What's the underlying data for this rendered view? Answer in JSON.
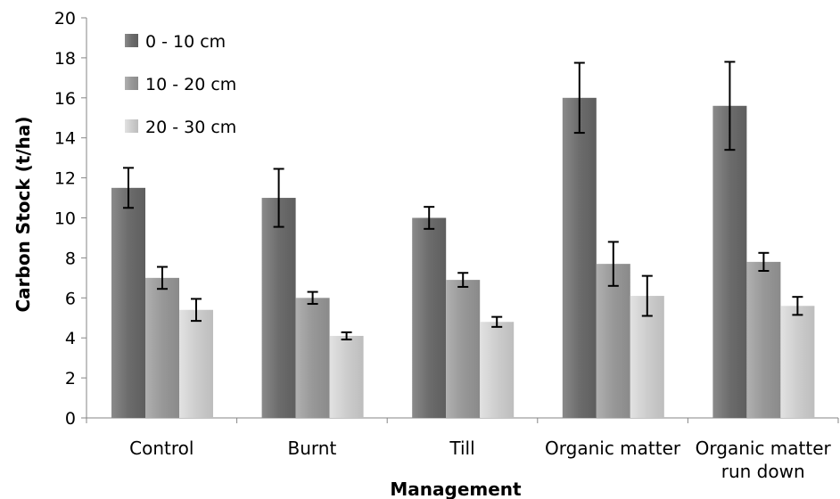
{
  "chart_data": {
    "type": "bar",
    "title": "",
    "xlabel": "Management",
    "ylabel": "Carbon Stock (t/ha)",
    "ylim": [
      0,
      20
    ],
    "yticks": [
      0,
      2,
      4,
      6,
      8,
      10,
      12,
      14,
      16,
      18,
      20
    ],
    "categories": [
      [
        "Control"
      ],
      [
        "Burnt"
      ],
      [
        "Till"
      ],
      [
        "Organic matter"
      ],
      [
        "Organic matter",
        "run down"
      ]
    ],
    "series": [
      {
        "name": "0 - 10 cm",
        "color": "#737373",
        "values": [
          11.5,
          11.0,
          10.0,
          16.0,
          15.6
        ],
        "error": [
          1.0,
          1.45,
          0.55,
          1.75,
          2.2
        ]
      },
      {
        "name": "10 - 20 cm",
        "color": "#9a9a9a",
        "values": [
          7.0,
          6.0,
          6.9,
          7.7,
          7.8
        ],
        "error": [
          0.55,
          0.3,
          0.35,
          1.1,
          0.45
        ]
      },
      {
        "name": "20 - 30 cm",
        "color": "#cdcdcd",
        "values": [
          5.4,
          4.1,
          4.8,
          6.1,
          5.6
        ],
        "error": [
          0.55,
          0.18,
          0.25,
          1.0,
          0.45
        ]
      }
    ],
    "grid": false,
    "legend_position": "top-left",
    "error_bars": true
  }
}
